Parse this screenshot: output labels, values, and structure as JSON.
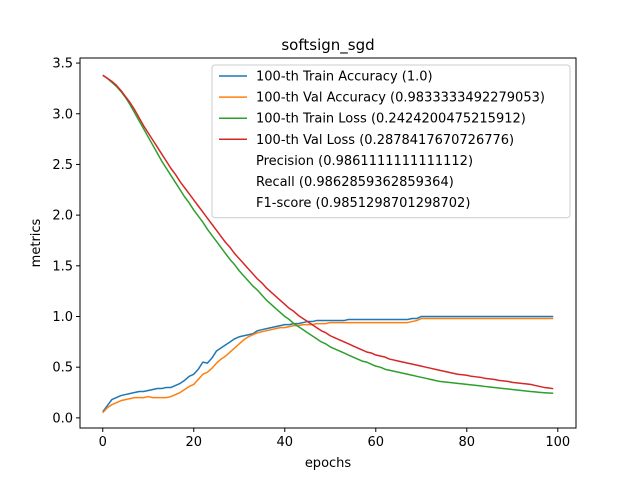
{
  "chart_data": {
    "type": "line",
    "title": "softsign_sgd",
    "xlabel": "epochs",
    "ylabel": "metrics",
    "xlim": [
      -5,
      104
    ],
    "ylim": [
      -0.1,
      3.55
    ],
    "xticks": [
      0,
      20,
      40,
      60,
      80,
      100
    ],
    "xtick_labels": [
      "0",
      "20",
      "40",
      "60",
      "80",
      "100"
    ],
    "yticks": [
      0.0,
      0.5,
      1.0,
      1.5,
      2.0,
      2.5,
      3.0,
      3.5
    ],
    "ytick_labels": [
      "0.0",
      "0.5",
      "1.0",
      "1.5",
      "2.0",
      "2.5",
      "3.0",
      "3.5"
    ],
    "grid": false,
    "legend_position": "upper-right",
    "x": [
      0,
      1,
      2,
      3,
      4,
      5,
      6,
      7,
      8,
      9,
      10,
      11,
      12,
      13,
      14,
      15,
      16,
      17,
      18,
      19,
      20,
      21,
      22,
      23,
      24,
      25,
      26,
      27,
      28,
      29,
      30,
      31,
      32,
      33,
      34,
      35,
      36,
      37,
      38,
      39,
      40,
      41,
      42,
      43,
      44,
      45,
      46,
      47,
      48,
      49,
      50,
      51,
      52,
      53,
      54,
      55,
      56,
      57,
      58,
      59,
      60,
      61,
      62,
      63,
      64,
      65,
      66,
      67,
      68,
      69,
      70,
      71,
      72,
      73,
      74,
      75,
      76,
      77,
      78,
      79,
      80,
      81,
      82,
      83,
      84,
      85,
      86,
      87,
      88,
      89,
      90,
      91,
      92,
      93,
      94,
      95,
      96,
      97,
      98,
      99
    ],
    "series": [
      {
        "name": "100-th Train Accuracy (1.0)",
        "color": "#1f77b4",
        "values": [
          0.06,
          0.12,
          0.18,
          0.2,
          0.22,
          0.23,
          0.24,
          0.25,
          0.26,
          0.26,
          0.27,
          0.28,
          0.29,
          0.29,
          0.3,
          0.3,
          0.32,
          0.34,
          0.37,
          0.41,
          0.43,
          0.48,
          0.55,
          0.54,
          0.59,
          0.66,
          0.69,
          0.72,
          0.75,
          0.78,
          0.8,
          0.81,
          0.82,
          0.83,
          0.86,
          0.87,
          0.88,
          0.89,
          0.9,
          0.91,
          0.92,
          0.92,
          0.93,
          0.93,
          0.94,
          0.95,
          0.95,
          0.96,
          0.96,
          0.96,
          0.96,
          0.96,
          0.96,
          0.96,
          0.97,
          0.97,
          0.97,
          0.97,
          0.97,
          0.97,
          0.97,
          0.97,
          0.97,
          0.97,
          0.97,
          0.97,
          0.97,
          0.97,
          0.98,
          0.98,
          1.0,
          1.0,
          1.0,
          1.0,
          1.0,
          1.0,
          1.0,
          1.0,
          1.0,
          1.0,
          1.0,
          1.0,
          1.0,
          1.0,
          1.0,
          1.0,
          1.0,
          1.0,
          1.0,
          1.0,
          1.0,
          1.0,
          1.0,
          1.0,
          1.0,
          1.0,
          1.0,
          1.0,
          1.0,
          1.0
        ]
      },
      {
        "name": "100-th Val Accuracy (0.9833333492279053)",
        "color": "#ff7f0e",
        "values": [
          0.05,
          0.1,
          0.13,
          0.15,
          0.17,
          0.18,
          0.19,
          0.2,
          0.2,
          0.2,
          0.21,
          0.2,
          0.2,
          0.2,
          0.2,
          0.21,
          0.23,
          0.25,
          0.28,
          0.31,
          0.33,
          0.38,
          0.43,
          0.45,
          0.49,
          0.54,
          0.58,
          0.61,
          0.65,
          0.69,
          0.73,
          0.77,
          0.8,
          0.82,
          0.84,
          0.85,
          0.86,
          0.87,
          0.88,
          0.89,
          0.89,
          0.9,
          0.91,
          0.91,
          0.92,
          0.92,
          0.92,
          0.93,
          0.93,
          0.93,
          0.94,
          0.94,
          0.94,
          0.94,
          0.94,
          0.94,
          0.94,
          0.94,
          0.94,
          0.94,
          0.94,
          0.94,
          0.94,
          0.94,
          0.94,
          0.94,
          0.94,
          0.94,
          0.95,
          0.96,
          0.98,
          0.98,
          0.98,
          0.98,
          0.98,
          0.98,
          0.98,
          0.98,
          0.98,
          0.98,
          0.98,
          0.98,
          0.98,
          0.98,
          0.98,
          0.98,
          0.98,
          0.98,
          0.98,
          0.98,
          0.98,
          0.98,
          0.98,
          0.98,
          0.98,
          0.98,
          0.98,
          0.98,
          0.98,
          0.98
        ]
      },
      {
        "name": "100-th Train Loss (0.2424200475215912)",
        "color": "#2ca02c",
        "values": [
          3.38,
          3.35,
          3.31,
          3.27,
          3.22,
          3.16,
          3.09,
          3.01,
          2.93,
          2.85,
          2.77,
          2.69,
          2.61,
          2.53,
          2.46,
          2.39,
          2.32,
          2.25,
          2.18,
          2.12,
          2.05,
          1.99,
          1.93,
          1.86,
          1.8,
          1.74,
          1.68,
          1.62,
          1.56,
          1.51,
          1.45,
          1.4,
          1.35,
          1.3,
          1.26,
          1.21,
          1.16,
          1.12,
          1.08,
          1.04,
          1.0,
          0.97,
          0.93,
          0.9,
          0.87,
          0.84,
          0.81,
          0.78,
          0.75,
          0.73,
          0.7,
          0.68,
          0.66,
          0.64,
          0.62,
          0.6,
          0.58,
          0.56,
          0.55,
          0.53,
          0.51,
          0.5,
          0.48,
          0.47,
          0.46,
          0.45,
          0.44,
          0.43,
          0.42,
          0.41,
          0.4,
          0.39,
          0.38,
          0.37,
          0.36,
          0.355,
          0.35,
          0.345,
          0.34,
          0.335,
          0.33,
          0.325,
          0.32,
          0.315,
          0.31,
          0.305,
          0.3,
          0.295,
          0.29,
          0.285,
          0.28,
          0.275,
          0.27,
          0.265,
          0.26,
          0.256,
          0.252,
          0.248,
          0.245,
          0.2424
        ]
      },
      {
        "name": "100-th Val Loss (0.2878417670726776)",
        "color": "#d62728",
        "values": [
          3.38,
          3.35,
          3.32,
          3.28,
          3.23,
          3.17,
          3.11,
          3.04,
          2.96,
          2.88,
          2.81,
          2.74,
          2.67,
          2.6,
          2.53,
          2.46,
          2.4,
          2.33,
          2.27,
          2.21,
          2.15,
          2.09,
          2.03,
          1.97,
          1.91,
          1.85,
          1.79,
          1.73,
          1.68,
          1.62,
          1.57,
          1.52,
          1.47,
          1.42,
          1.37,
          1.33,
          1.28,
          1.24,
          1.2,
          1.16,
          1.12,
          1.08,
          1.05,
          1.01,
          0.98,
          0.95,
          0.92,
          0.89,
          0.86,
          0.84,
          0.81,
          0.79,
          0.77,
          0.75,
          0.73,
          0.71,
          0.69,
          0.67,
          0.65,
          0.64,
          0.62,
          0.61,
          0.6,
          0.58,
          0.57,
          0.56,
          0.55,
          0.54,
          0.53,
          0.52,
          0.51,
          0.5,
          0.49,
          0.48,
          0.47,
          0.46,
          0.45,
          0.44,
          0.43,
          0.425,
          0.42,
          0.41,
          0.405,
          0.4,
          0.39,
          0.385,
          0.38,
          0.37,
          0.365,
          0.36,
          0.35,
          0.345,
          0.34,
          0.335,
          0.33,
          0.32,
          0.31,
          0.3,
          0.295,
          0.2878
        ]
      }
    ],
    "legend_extra": [
      "Precision (0.9861111111111112)",
      "Recall (0.9862859362859364)",
      "F1-score (0.9851298701298702)"
    ]
  }
}
